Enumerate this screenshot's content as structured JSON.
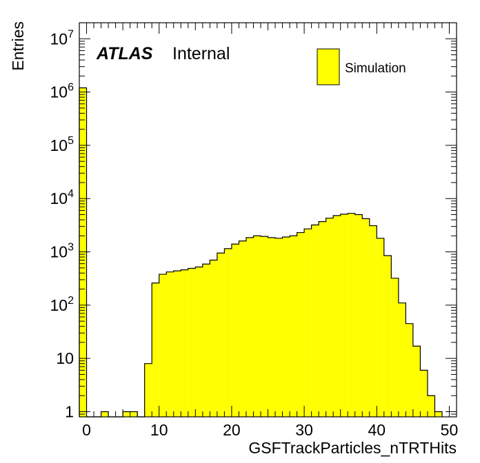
{
  "chart_data": {
    "type": "bar",
    "histogram": true,
    "xlabel": "GSFTrackParticles_nTRTHits",
    "ylabel": "Entries",
    "xlim": [
      -1,
      51
    ],
    "ylim": [
      0.8,
      20000000
    ],
    "yscale": "log",
    "fill_color": "#ffff00",
    "line_color": "#000000",
    "bin_width": 1,
    "bin_edges_start": -1,
    "values": [
      1200000,
      0,
      0,
      1,
      0,
      0,
      1,
      1,
      0,
      8,
      260,
      380,
      420,
      440,
      460,
      490,
      520,
      590,
      700,
      950,
      1150,
      1400,
      1600,
      1850,
      2000,
      1950,
      1850,
      1800,
      1900,
      2000,
      2300,
      2700,
      3200,
      3700,
      4300,
      4800,
      5100,
      5300,
      5000,
      4200,
      3100,
      1800,
      850,
      320,
      110,
      45,
      17,
      6,
      2,
      1
    ],
    "x_ticks": [
      0,
      10,
      20,
      30,
      40,
      50
    ],
    "x_tick_labels": [
      "0",
      "10",
      "20",
      "30",
      "40",
      "50"
    ],
    "y_ticks": [
      1,
      10,
      100,
      1000,
      10000,
      100000,
      1000000,
      10000000
    ],
    "y_tick_labels": [
      {
        "base": "1",
        "exp": ""
      },
      {
        "base": "10",
        "exp": ""
      },
      {
        "base": "10",
        "exp": "2"
      },
      {
        "base": "10",
        "exp": "3"
      },
      {
        "base": "10",
        "exp": "4"
      },
      {
        "base": "10",
        "exp": "5"
      },
      {
        "base": "10",
        "exp": "6"
      },
      {
        "base": "10",
        "exp": "7"
      }
    ],
    "legend": {
      "position": "top-right",
      "entries": [
        {
          "label": "Simulation",
          "color": "#ffff00"
        }
      ]
    },
    "annotations": {
      "atlas": "ATLAS",
      "status": "Internal"
    }
  }
}
